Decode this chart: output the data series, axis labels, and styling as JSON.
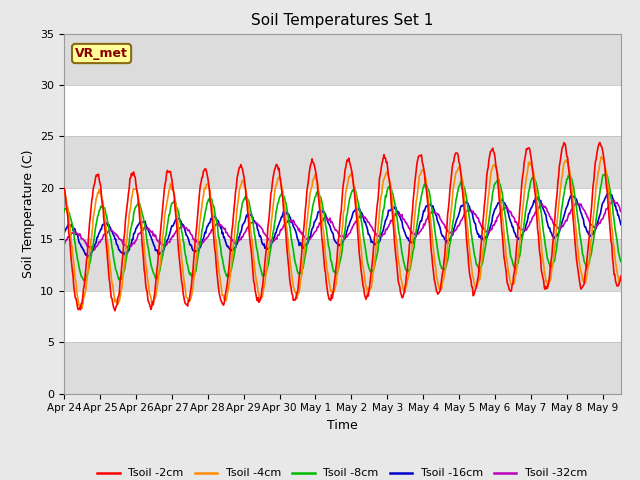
{
  "title": "Soil Temperatures Set 1",
  "xlabel": "Time",
  "ylabel": "Soil Temperature (C)",
  "ylim": [
    0,
    35
  ],
  "yticks": [
    0,
    5,
    10,
    15,
    20,
    25,
    30,
    35
  ],
  "annotation_text": "VR_met",
  "annotation_color": "#8B0000",
  "annotation_bg": "#FFFF99",
  "legend_entries": [
    "Tsoil -2cm",
    "Tsoil -4cm",
    "Tsoil -8cm",
    "Tsoil -16cm",
    "Tsoil -32cm"
  ],
  "line_colors": [
    "#FF0000",
    "#FF8C00",
    "#00BB00",
    "#0000CC",
    "#BB00BB"
  ],
  "fig_bg_color": "#E8E8E8",
  "plot_bg_color": "#DCDCDC",
  "tick_labels": [
    "Apr 24",
    "Apr 25",
    "Apr 26",
    "Apr 27",
    "Apr 28",
    "Apr 29",
    "Apr 30",
    "May 1",
    "May 2",
    "May 3",
    "May 4",
    "May 5",
    "May 6",
    "May 7",
    "May 8",
    "May 9"
  ],
  "n_days": 15.5
}
